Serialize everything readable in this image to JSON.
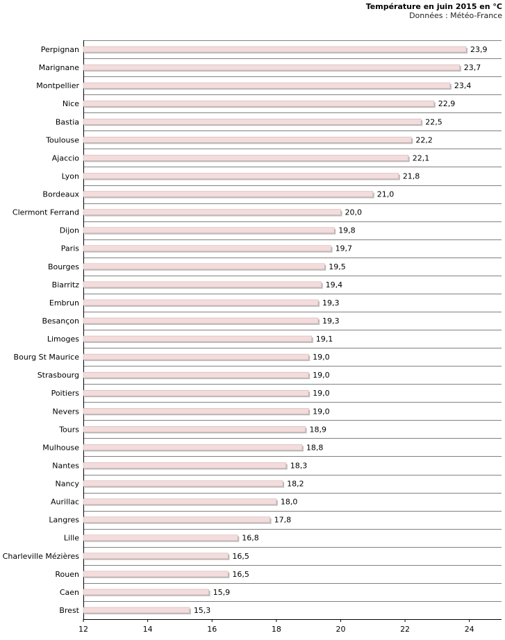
{
  "chart_data": {
    "type": "bar",
    "orientation": "horizontal",
    "title": "Température en juin 2015 en °C",
    "subtitle": "Données : Météo-France",
    "xlabel": "",
    "ylabel": "",
    "xlim": [
      12,
      25
    ],
    "xticks": [
      12,
      14,
      16,
      18,
      20,
      22,
      24
    ],
    "grid": true,
    "categories": [
      "Perpignan",
      "Marignane",
      "Montpellier",
      "Nice",
      "Bastia",
      "Toulouse",
      "Ajaccio",
      "Lyon",
      "Bordeaux",
      "Clermont Ferrand",
      "Dijon",
      "Paris",
      "Bourges",
      "Biarritz",
      "Embrun",
      "Besançon",
      "Limoges",
      "Bourg St Maurice",
      "Strasbourg",
      "Poitiers",
      "Nevers",
      "Tours",
      "Mulhouse",
      "Nantes",
      "Nancy",
      "Aurillac",
      "Langres",
      "Lille",
      "Charleville Mézières",
      "Rouen",
      "Caen",
      "Brest"
    ],
    "values": [
      23.9,
      23.7,
      23.4,
      22.9,
      22.5,
      22.2,
      22.1,
      21.8,
      21.0,
      20.0,
      19.8,
      19.7,
      19.5,
      19.4,
      19.3,
      19.3,
      19.1,
      19.0,
      19.0,
      19.0,
      19.0,
      18.9,
      18.8,
      18.3,
      18.2,
      18.0,
      17.8,
      16.8,
      16.5,
      16.5,
      15.9,
      15.3
    ],
    "value_labels": [
      "23,9",
      "23,7",
      "23,4",
      "22,9",
      "22,5",
      "22,2",
      "22,1",
      "21,8",
      "21,0",
      "20,0",
      "19,8",
      "19,7",
      "19,5",
      "19,4",
      "19,3",
      "19,3",
      "19,1",
      "19,0",
      "19,0",
      "19,0",
      "19,0",
      "18,9",
      "18,8",
      "18,3",
      "18,2",
      "18,0",
      "17,8",
      "16,8",
      "16,5",
      "16,5",
      "15,9",
      "15,3"
    ],
    "colors": {
      "bar_fill": "#f4dcdc",
      "bar_stroke": "#c9a8a8",
      "bar_shadow": "#bdbdbd",
      "grid": "#808080",
      "axis": "#000000"
    }
  }
}
